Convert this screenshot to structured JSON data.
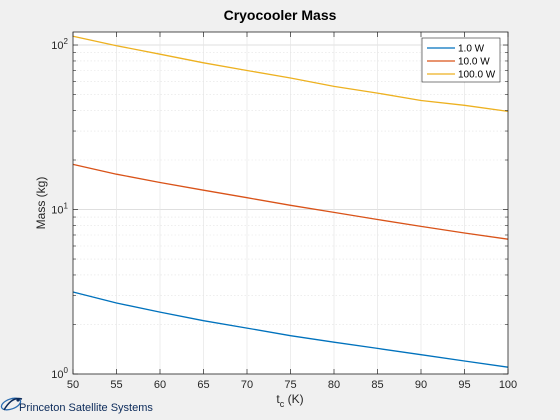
{
  "chart_data": {
    "type": "line",
    "title": "Cryocooler Mass",
    "xlabel": "t",
    "xlabel_sub": "c",
    "xlabel_unit": " (K)",
    "ylabel": "Mass (kg)",
    "xlim": [
      50,
      100
    ],
    "ylim": [
      1,
      120
    ],
    "yscale": "log",
    "grid": true,
    "legend_position": "top-right",
    "x_ticks": [
      50,
      55,
      60,
      65,
      70,
      75,
      80,
      85,
      90,
      95,
      100
    ],
    "y_ticks": [
      {
        "value": 1,
        "base": "10",
        "exp": "0"
      },
      {
        "value": 10,
        "base": "10",
        "exp": "1"
      },
      {
        "value": 100,
        "base": "10",
        "exp": "2"
      }
    ],
    "x": [
      50,
      55,
      60,
      65,
      70,
      75,
      80,
      85,
      90,
      95,
      100
    ],
    "series": [
      {
        "name": "1.0 W",
        "color": "#0072bd",
        "values": [
          3.15,
          2.7,
          2.38,
          2.11,
          1.9,
          1.71,
          1.56,
          1.43,
          1.31,
          1.2,
          1.1
        ]
      },
      {
        "name": "10.0 W",
        "color": "#d95319",
        "values": [
          18.8,
          16.4,
          14.6,
          13.1,
          11.8,
          10.6,
          9.6,
          8.7,
          7.9,
          7.2,
          6.6
        ]
      },
      {
        "name": "100.0 W",
        "color": "#edb120",
        "values": [
          113,
          99,
          88,
          78,
          70,
          63,
          56,
          51,
          46,
          43,
          39.5
        ]
      }
    ]
  },
  "branding": {
    "logo_text": "Princeton Satellite Systems",
    "logo_color": "#0b2a5a"
  }
}
